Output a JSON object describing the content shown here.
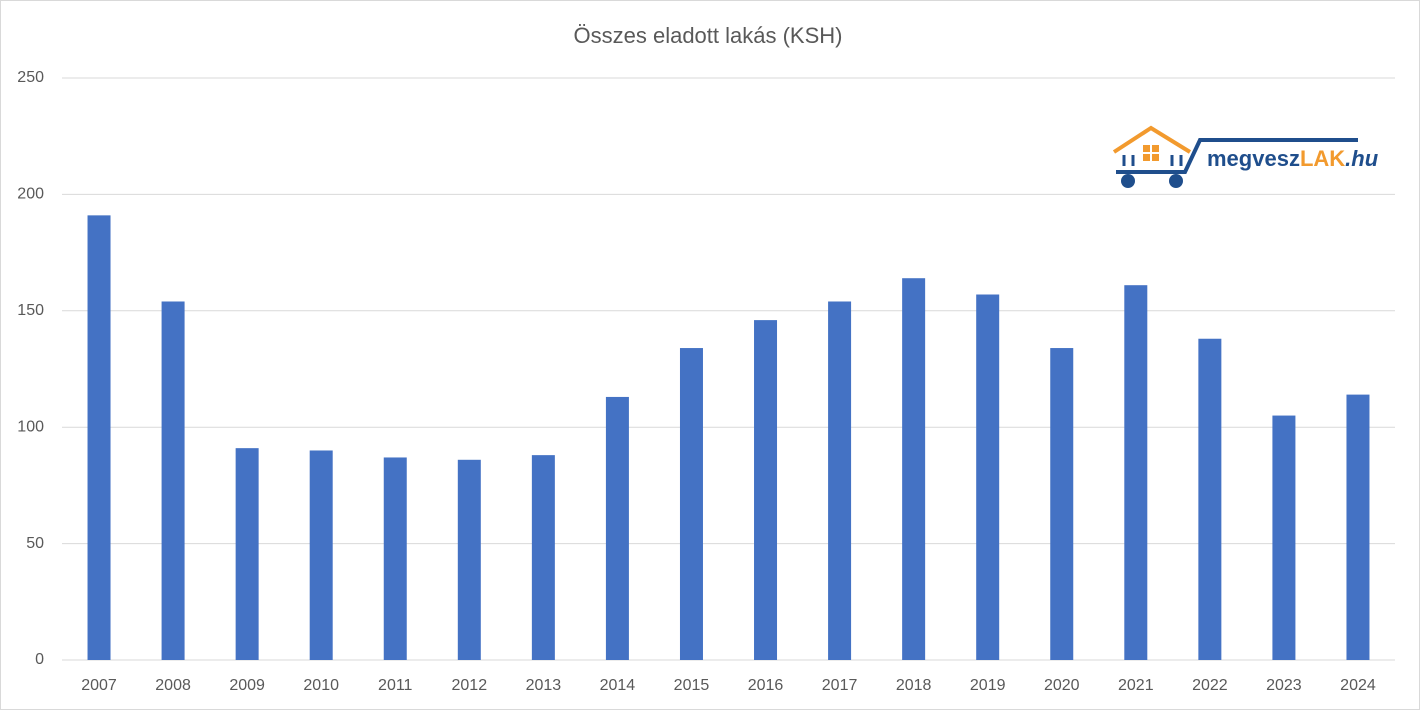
{
  "chart_data": {
    "type": "bar",
    "title": "Összes eladott lakás (KSH)",
    "categories": [
      "2007",
      "2008",
      "2009",
      "2010",
      "2011",
      "2012",
      "2013",
      "2014",
      "2015",
      "2016",
      "2017",
      "2018",
      "2019",
      "2020",
      "2021",
      "2022",
      "2023",
      "2024"
    ],
    "values": [
      191,
      154,
      91,
      90,
      87,
      86,
      88,
      113,
      134,
      146,
      154,
      164,
      157,
      134,
      161,
      138,
      105,
      114
    ],
    "color": "#4472c4",
    "ylim": [
      0,
      250
    ],
    "yticks": [
      0,
      50,
      100,
      150,
      200,
      250
    ],
    "grid": true,
    "annotations": [
      "megvesz",
      "LAK",
      ".hu"
    ]
  }
}
